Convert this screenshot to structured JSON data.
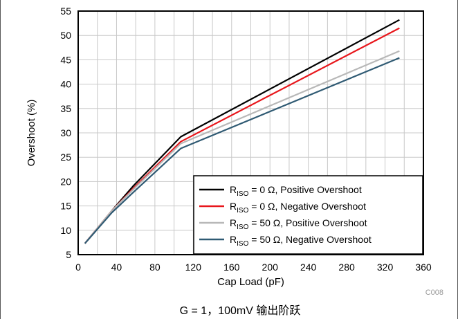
{
  "chart_data": {
    "type": "line",
    "xlabel": "Cap Load (pF)",
    "ylabel": "Overshoot (%)",
    "xlim": [
      0,
      360
    ],
    "ylim": [
      5,
      55
    ],
    "xticks": [
      0,
      40,
      80,
      120,
      160,
      200,
      240,
      280,
      320,
      360
    ],
    "yticks": [
      5,
      10,
      15,
      20,
      25,
      30,
      35,
      40,
      45,
      50,
      55
    ],
    "grid": true,
    "legend_position": "bottom-right",
    "series": [
      {
        "name_main": "R",
        "name_sub": "ISO",
        "name_rest": " = 0 Ω, Positive Overshoot",
        "color": "#000000",
        "x": [
          7,
          35,
          57,
          107,
          335
        ],
        "y": [
          7.3,
          14,
          19,
          29.2,
          53.2
        ]
      },
      {
        "name_main": "R",
        "name_sub": "ISO",
        "name_rest": " = 0 Ω, Negative Overshoot",
        "color": "#e8161b",
        "x": [
          7,
          35,
          57,
          107,
          335
        ],
        "y": [
          7.3,
          14,
          18.5,
          28.2,
          51.5
        ]
      },
      {
        "name_main": "R",
        "name_sub": "ISO",
        "name_rest": " = 50 Ω, Positive Overshoot",
        "color": "#b8b8b8",
        "x": [
          7,
          35,
          57,
          107,
          335
        ],
        "y": [
          7.3,
          14,
          18.3,
          27.8,
          46.8
        ]
      },
      {
        "name_main": "R",
        "name_sub": "ISO",
        "name_rest": " = 50 Ω, Negative Overshoot",
        "color": "#2f5a73",
        "x": [
          7,
          35,
          57,
          107,
          335
        ],
        "y": [
          7.3,
          13.6,
          17.7,
          26.8,
          45.4
        ]
      }
    ],
    "annotation_code": "C008",
    "caption": "G = 1，100mV 输出阶跃"
  }
}
